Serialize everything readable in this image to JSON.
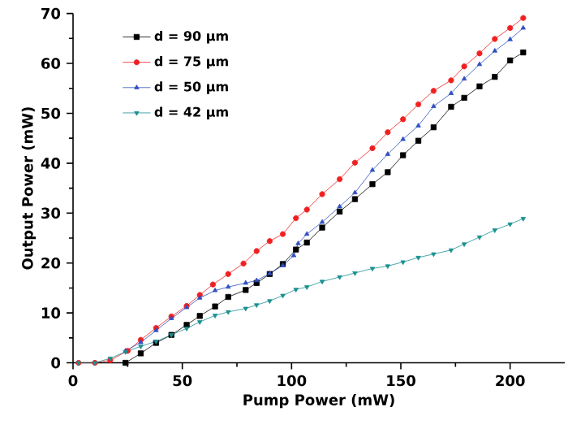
{
  "chart_data": {
    "type": "line",
    "xlabel": "Pump Power (mW)",
    "ylabel": "Output Power (mW)",
    "xlim": [
      0,
      225
    ],
    "ylim": [
      0,
      70
    ],
    "xticks": [
      0,
      50,
      100,
      150,
      200
    ],
    "yticks": [
      0,
      10,
      20,
      30,
      40,
      50,
      60,
      70
    ],
    "grid": false,
    "legend": "top left",
    "line_style": "solid",
    "series": [
      {
        "name": "d = 90 µm",
        "color": "#000000",
        "marker": "square",
        "x": [
          24,
          31,
          38,
          45,
          52,
          58,
          65,
          71,
          79,
          84,
          90,
          96,
          102,
          107,
          114,
          122,
          129,
          137,
          144,
          151,
          158,
          165,
          173,
          179,
          186,
          193,
          200,
          206
        ],
        "values": [
          0,
          1.9,
          4.0,
          5.6,
          7.6,
          9.4,
          11.3,
          13.2,
          14.6,
          16.0,
          17.8,
          19.8,
          22.7,
          24.1,
          27.1,
          30.3,
          32.8,
          35.8,
          38.2,
          41.6,
          44.5,
          47.2,
          51.3,
          53.1,
          55.4,
          57.3,
          60.6,
          62.2
        ]
      },
      {
        "name": "d = 75 µm",
        "color": "#f02020",
        "marker": "circle",
        "x": [
          2.5,
          10,
          17,
          25,
          31,
          38,
          45,
          52,
          58,
          64,
          71,
          78,
          84,
          90,
          96,
          102,
          107,
          114,
          122,
          129,
          137,
          144,
          151,
          158,
          165,
          173,
          179,
          186,
          193,
          200,
          206
        ],
        "values": [
          0,
          0,
          0.5,
          2.4,
          4.6,
          7.0,
          9.3,
          11.4,
          13.6,
          15.7,
          17.8,
          19.9,
          22.4,
          24.4,
          25.8,
          29.0,
          30.7,
          33.8,
          36.8,
          40.1,
          43.0,
          46.2,
          48.8,
          51.8,
          54.5,
          56.6,
          59.4,
          62.0,
          64.9,
          67.1,
          69.1
        ]
      },
      {
        "name": "d = 50 µm",
        "color": "#3050c0",
        "marker": "triangle",
        "x": [
          24,
          31,
          38,
          45,
          52,
          58,
          65,
          71,
          79,
          84,
          90,
          96,
          101,
          103,
          107,
          114,
          122,
          129,
          137,
          144,
          151,
          158,
          165,
          173,
          179,
          186,
          193,
          200,
          206
        ],
        "values": [
          2.4,
          4.1,
          6.5,
          8.9,
          11.1,
          13.0,
          14.5,
          15.2,
          16.0,
          16.5,
          17.9,
          19.5,
          21.5,
          23.9,
          25.8,
          28.2,
          31.3,
          34.1,
          38.6,
          41.8,
          44.8,
          47.5,
          51.4,
          54.0,
          56.9,
          59.8,
          62.5,
          64.8,
          67.1
        ]
      },
      {
        "name": "d = 42 µm",
        "color": "#1a9090",
        "marker": "triangle-down",
        "x": [
          2.5,
          10,
          17,
          24,
          31,
          38,
          45,
          52,
          58,
          65,
          71,
          79,
          84,
          90,
          96,
          102,
          107,
          114,
          122,
          129,
          137,
          144,
          151,
          158,
          165,
          173,
          179,
          186,
          193,
          200,
          206
        ],
        "values": [
          0,
          0,
          0.9,
          2.2,
          3.3,
          4.3,
          5.6,
          6.9,
          8.2,
          9.5,
          10.2,
          10.9,
          11.6,
          12.4,
          13.5,
          14.7,
          15.2,
          16.3,
          17.2,
          18.0,
          18.9,
          19.4,
          20.2,
          21.1,
          21.8,
          22.6,
          23.8,
          25.2,
          26.6,
          27.8,
          28.9
        ]
      }
    ]
  }
}
